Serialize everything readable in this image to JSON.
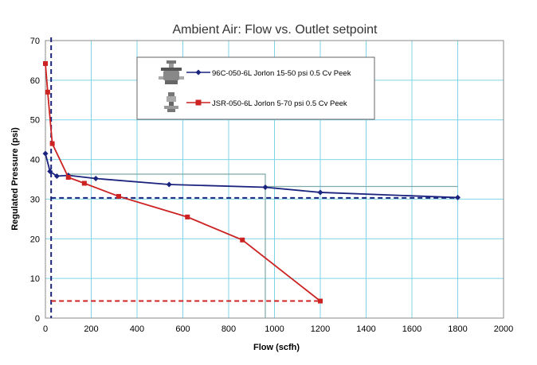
{
  "chart_data": {
    "type": "line",
    "title": "Ambient Air:  Flow vs. Outlet setpoint",
    "xlabel": "Flow (scfh)",
    "ylabel": "Regulated Pressure (psi)",
    "xlim": [
      0,
      2000
    ],
    "ylim": [
      0,
      70
    ],
    "xticks": [
      0,
      200,
      400,
      600,
      800,
      1000,
      1200,
      1400,
      1600,
      1800,
      2000
    ],
    "yticks": [
      0,
      10,
      20,
      30,
      40,
      50,
      60,
      70
    ],
    "grid": true,
    "legend_position": "top-center",
    "series": [
      {
        "name": "96C-050-6L  Jorlon  15-50 psi  0.5 Cv  Peek",
        "color": "#1a237e",
        "marker": "diamond",
        "x": [
          0,
          20,
          50,
          100,
          220,
          540,
          960,
          1200,
          1800
        ],
        "y": [
          41.5,
          37,
          35.8,
          36,
          35.2,
          33.7,
          33,
          31.7,
          30.4
        ]
      },
      {
        "name": "JSR-050-6L  Jorlon  5-70 psi  0.5 Cv  Peek",
        "color": "#cc2222",
        "marker": "square",
        "x": [
          0,
          10,
          30,
          100,
          170,
          320,
          620,
          860,
          1200
        ],
        "y": [
          64.2,
          57,
          44,
          35.5,
          34,
          30.7,
          25.5,
          19.7,
          4.3
        ]
      }
    ],
    "reference_lines": [
      {
        "orientation": "vertical",
        "x": 25,
        "color": "#1a237e",
        "style": "dashed"
      },
      {
        "orientation": "horizontal",
        "y": 30.3,
        "x_range": [
          25,
          1800
        ],
        "color": "#1a237e",
        "style": "dashed"
      },
      {
        "orientation": "horizontal",
        "y": 4.3,
        "x_range": [
          25,
          1200
        ],
        "color": "#cc2222",
        "style": "dashed"
      },
      {
        "orientation": "polyline",
        "x": [
          100,
          960,
          960
        ],
        "y": [
          36.3,
          36.3,
          0
        ],
        "color": "#7fa8a8",
        "style": "solid"
      },
      {
        "orientation": "horizontal",
        "y": 33.2,
        "x_range": [
          960,
          1800
        ],
        "color": "#7fa8a8",
        "style": "solid"
      }
    ]
  },
  "legend": {
    "icons": [
      "regulator-96c-icon",
      "regulator-jsr-icon"
    ]
  }
}
